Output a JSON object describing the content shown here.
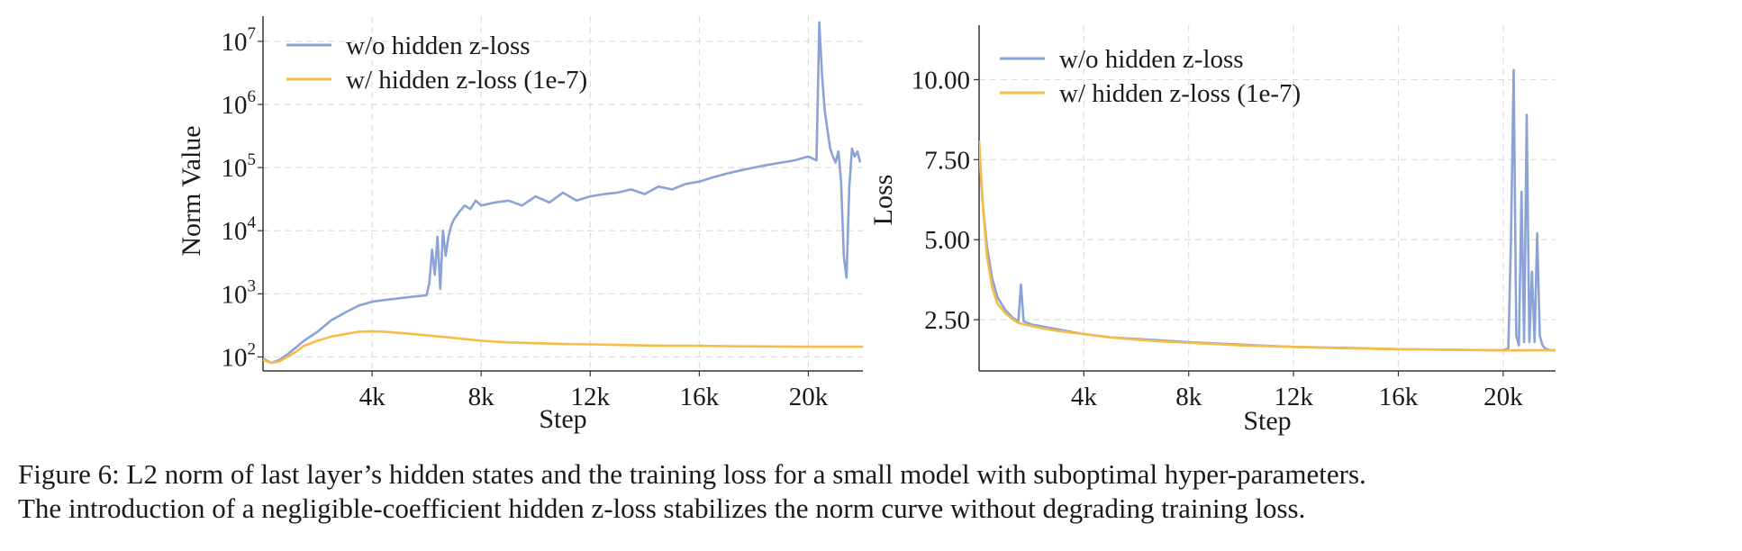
{
  "chart_data": [
    {
      "type": "line",
      "xlabel": "Step",
      "ylabel": "Norm Value",
      "yscale": "log",
      "xlim": [
        0,
        22000
      ],
      "ylim": [
        60,
        25000000
      ],
      "xticks": [
        4000,
        8000,
        12000,
        16000,
        20000
      ],
      "xtick_labels": [
        "4k",
        "8k",
        "12k",
        "16k",
        "20k"
      ],
      "yticks": [
        100,
        1000,
        10000,
        100000,
        1000000,
        10000000
      ],
      "ytick_labels": [
        {
          "base": "10",
          "exp": "2"
        },
        {
          "base": "10",
          "exp": "3"
        },
        {
          "base": "10",
          "exp": "4"
        },
        {
          "base": "10",
          "exp": "5"
        },
        {
          "base": "10",
          "exp": "6"
        },
        {
          "base": "10",
          "exp": "7"
        }
      ],
      "grid": true,
      "legend_position": "top-left",
      "series": [
        {
          "name": "w/o hidden z-loss",
          "color": "#8aa3d6",
          "x": [
            0,
            300,
            600,
            900,
            1200,
            1500,
            2000,
            2500,
            3000,
            3500,
            4000,
            4500,
            5000,
            5500,
            6000,
            6100,
            6200,
            6300,
            6400,
            6500,
            6600,
            6700,
            6800,
            6900,
            7000,
            7200,
            7400,
            7600,
            7800,
            8000,
            8500,
            9000,
            9500,
            10000,
            10500,
            11000,
            11500,
            12000,
            12500,
            13000,
            13500,
            14000,
            14500,
            15000,
            15500,
            16000,
            16500,
            17000,
            17500,
            18000,
            18500,
            19000,
            19500,
            20000,
            20300,
            20400,
            20500,
            20600,
            20700,
            20800,
            20900,
            21000,
            21100,
            21200,
            21300,
            21400,
            21500,
            21600,
            21700,
            21800,
            21900
          ],
          "y": [
            95,
            80,
            90,
            110,
            140,
            180,
            250,
            380,
            500,
            650,
            750,
            800,
            850,
            900,
            950,
            1500,
            5000,
            2000,
            8000,
            1200,
            10000,
            4000,
            8000,
            12000,
            15000,
            20000,
            25000,
            22000,
            30000,
            25000,
            28000,
            30000,
            25000,
            35000,
            28000,
            40000,
            30000,
            35000,
            38000,
            40000,
            45000,
            38000,
            50000,
            45000,
            55000,
            60000,
            70000,
            80000,
            90000,
            100000,
            110000,
            120000,
            130000,
            150000,
            130000,
            20000000,
            3000000,
            800000,
            400000,
            200000,
            150000,
            120000,
            180000,
            60000,
            4000,
            1800,
            50000,
            200000,
            150000,
            180000,
            120000
          ]
        },
        {
          "name": "w/ hidden z-loss (1e-7)",
          "color": "#f6bc45",
          "x": [
            0,
            300,
            600,
            900,
            1200,
            1500,
            2000,
            2500,
            3000,
            3500,
            4000,
            4500,
            5000,
            5500,
            6000,
            7000,
            8000,
            9000,
            10000,
            11000,
            12000,
            13000,
            14000,
            15000,
            16000,
            17000,
            18000,
            19000,
            20000,
            21000,
            22000
          ],
          "y": [
            90,
            80,
            85,
            100,
            120,
            150,
            180,
            210,
            230,
            250,
            255,
            250,
            240,
            230,
            220,
            200,
            180,
            170,
            165,
            160,
            158,
            155,
            152,
            150,
            150,
            148,
            147,
            146,
            145,
            145,
            145
          ]
        }
      ]
    },
    {
      "type": "line",
      "xlabel": "Step",
      "ylabel": "Loss",
      "xlim": [
        0,
        22000
      ],
      "ylim": [
        0.9,
        11.7
      ],
      "xticks": [
        4000,
        8000,
        12000,
        16000,
        20000
      ],
      "xtick_labels": [
        "4k",
        "8k",
        "12k",
        "16k",
        "20k"
      ],
      "yticks": [
        2.5,
        5.0,
        7.5,
        10.0
      ],
      "ytick_labels": [
        "2.50",
        "5.00",
        "7.50",
        "10.00"
      ],
      "grid": true,
      "legend_position": "top-left",
      "series": [
        {
          "name": "w/o hidden z-loss",
          "color": "#8aa3d6",
          "x": [
            0,
            150,
            300,
            500,
            700,
            1000,
            1300,
            1500,
            1600,
            1700,
            2000,
            3000,
            4000,
            5000,
            6000,
            7000,
            8000,
            10000,
            12000,
            14000,
            16000,
            18000,
            19500,
            20000,
            20200,
            20300,
            20400,
            20500,
            20600,
            20700,
            20800,
            20900,
            21000,
            21100,
            21200,
            21300,
            21400,
            21500,
            21600,
            21800,
            22000
          ],
          "y": [
            7.7,
            6.0,
            4.8,
            3.8,
            3.2,
            2.8,
            2.55,
            2.45,
            3.6,
            2.45,
            2.35,
            2.2,
            2.05,
            1.95,
            1.9,
            1.85,
            1.8,
            1.72,
            1.65,
            1.62,
            1.58,
            1.56,
            1.55,
            1.55,
            1.6,
            5.0,
            10.3,
            2.0,
            1.7,
            6.5,
            1.8,
            8.9,
            1.8,
            4.0,
            1.8,
            5.2,
            2.0,
            1.7,
            1.6,
            1.55,
            1.55
          ]
        },
        {
          "name": "w/ hidden z-loss (1e-7)",
          "color": "#f6bc45",
          "x": [
            0,
            150,
            300,
            500,
            700,
            1000,
            1300,
            1500,
            2000,
            2500,
            3000,
            4000,
            5000,
            6000,
            7000,
            8000,
            10000,
            12000,
            14000,
            16000,
            18000,
            20000,
            22000
          ],
          "y": [
            8.1,
            6.0,
            4.5,
            3.5,
            3.0,
            2.7,
            2.5,
            2.4,
            2.3,
            2.22,
            2.15,
            2.05,
            1.95,
            1.88,
            1.82,
            1.78,
            1.7,
            1.65,
            1.61,
            1.58,
            1.56,
            1.54,
            1.55
          ]
        }
      ]
    }
  ],
  "caption": {
    "line1": "Figure 6: L2 norm of last layer’s hidden states and the training loss for a small model with suboptimal hyper-parameters.",
    "line2": "The introduction of a negligible-coefficient hidden z-loss stabilizes the norm curve without degrading training loss."
  }
}
